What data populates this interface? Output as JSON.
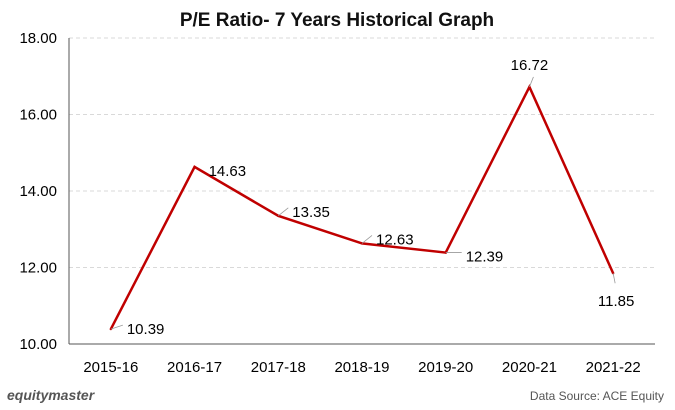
{
  "chart_data": {
    "type": "line",
    "title": "P/E Ratio- 7 Years Historical Graph",
    "xlabel": "",
    "ylabel": "",
    "categories": [
      "2015-16",
      "2016-17",
      "2017-18",
      "2018-19",
      "2019-20",
      "2020-21",
      "2021-22"
    ],
    "values": [
      10.39,
      14.63,
      13.35,
      12.63,
      12.39,
      16.72,
      11.85
    ],
    "data_labels": [
      "10.39",
      "14.63",
      "13.35",
      "12.63",
      "12.39",
      "16.72",
      "11.85"
    ],
    "ylim": [
      10,
      18
    ],
    "yticks": [
      10,
      12,
      14,
      16,
      18
    ],
    "ytick_labels": [
      "10.00",
      "12.00",
      "14.00",
      "16.00",
      "18.00"
    ],
    "grid": true,
    "line_color": "#c00000"
  },
  "footer": {
    "brand": "equitymaster",
    "source": "Data Source: ACE Equity"
  }
}
